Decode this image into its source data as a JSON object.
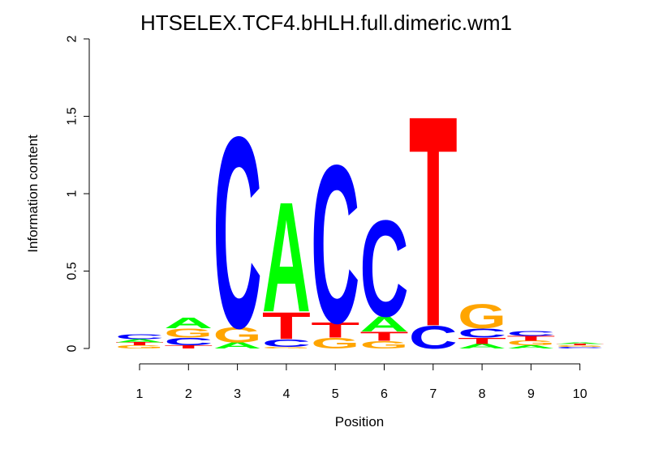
{
  "chart_data": {
    "type": "sequence-logo",
    "title": "HTSELEX.TCF4.bHLH.full.dimeric.wm1",
    "xlabel": "Position",
    "ylabel": "Information content",
    "ylim": [
      0,
      2
    ],
    "yticks": [
      "0",
      "0.5",
      "1",
      "1.5",
      "2"
    ],
    "positions": [
      "1",
      "2",
      "3",
      "4",
      "5",
      "6",
      "7",
      "8",
      "9",
      "10"
    ],
    "colors": {
      "A": "#00ff00",
      "C": "#0000ff",
      "G": "#ffa500",
      "T": "#ff0000"
    },
    "stacks": [
      [
        {
          "letter": "G",
          "height": 0.02
        },
        {
          "letter": "T",
          "height": 0.02
        },
        {
          "letter": "A",
          "height": 0.02
        },
        {
          "letter": "C",
          "height": 0.03
        }
      ],
      [
        {
          "letter": "T",
          "height": 0.02
        },
        {
          "letter": "C",
          "height": 0.05
        },
        {
          "letter": "G",
          "height": 0.06
        },
        {
          "letter": "A",
          "height": 0.07
        }
      ],
      [
        {
          "letter": "A",
          "height": 0.04
        },
        {
          "letter": "G",
          "height": 0.1
        },
        {
          "letter": "C",
          "height": 1.27
        }
      ],
      [
        {
          "letter": "G",
          "height": 0.01
        },
        {
          "letter": "C",
          "height": 0.05
        },
        {
          "letter": "T",
          "height": 0.18
        },
        {
          "letter": "A",
          "height": 0.73
        }
      ],
      [
        {
          "letter": "G",
          "height": 0.07
        },
        {
          "letter": "T",
          "height": 0.1
        },
        {
          "letter": "C",
          "height": 1.05
        }
      ],
      [
        {
          "letter": "G",
          "height": 0.05
        },
        {
          "letter": "T",
          "height": 0.06
        },
        {
          "letter": "A",
          "height": 0.1
        },
        {
          "letter": "C",
          "height": 0.64
        }
      ],
      [
        {
          "letter": "C",
          "height": 0.15
        },
        {
          "letter": "T",
          "height": 1.4
        }
      ],
      [
        {
          "letter": "A",
          "height": 0.03
        },
        {
          "letter": "T",
          "height": 0.04
        },
        {
          "letter": "C",
          "height": 0.06
        },
        {
          "letter": "G",
          "height": 0.16
        }
      ],
      [
        {
          "letter": "A",
          "height": 0.02
        },
        {
          "letter": "G",
          "height": 0.03
        },
        {
          "letter": "T",
          "height": 0.03
        },
        {
          "letter": "C",
          "height": 0.03
        }
      ],
      [
        {
          "letter": "C",
          "height": 0.01
        },
        {
          "letter": "G",
          "height": 0.01
        },
        {
          "letter": "T",
          "height": 0.01
        },
        {
          "letter": "A",
          "height": 0.01
        }
      ]
    ]
  }
}
